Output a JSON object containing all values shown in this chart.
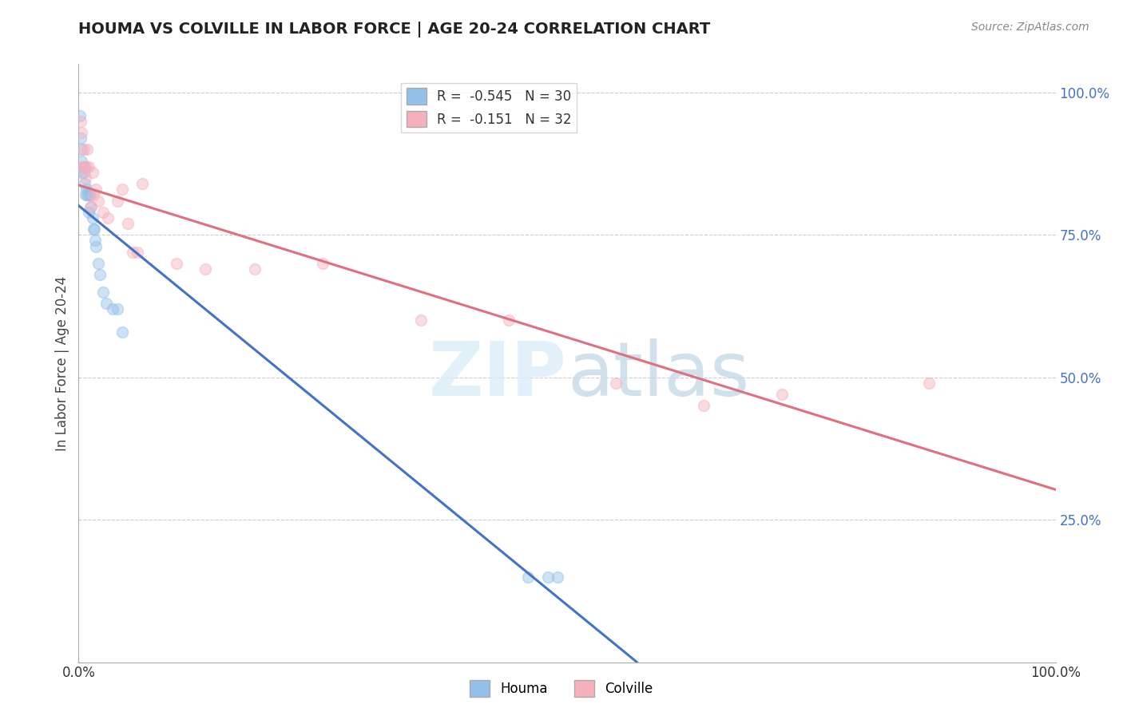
{
  "title": "HOUMA VS COLVILLE IN LABOR FORCE | AGE 20-24 CORRELATION CHART",
  "source_text": "Source: ZipAtlas.com",
  "ylabel": "In Labor Force | Age 20-24",
  "houma_R": -0.545,
  "houma_N": 30,
  "colville_R": -0.151,
  "colville_N": 32,
  "houma_color": "#92c0e8",
  "colville_color": "#f5b0bc",
  "houma_line_color": "#4472c4",
  "colville_line_color": "#e07080",
  "bg_color": "#ffffff",
  "grid_color": "#cccccc",
  "houma_x": [
    0.001,
    0.002,
    0.003,
    0.003,
    0.004,
    0.005,
    0.005,
    0.006,
    0.007,
    0.008,
    0.009,
    0.01,
    0.01,
    0.012,
    0.013,
    0.014,
    0.015,
    0.016,
    0.017,
    0.018,
    0.02,
    0.022,
    0.025,
    0.028,
    0.035,
    0.04,
    0.045,
    0.46,
    0.48,
    0.49
  ],
  "houma_y": [
    0.96,
    0.92,
    0.88,
    0.9,
    0.86,
    0.87,
    0.86,
    0.84,
    0.82,
    0.83,
    0.82,
    0.82,
    0.79,
    0.82,
    0.8,
    0.78,
    0.76,
    0.76,
    0.74,
    0.73,
    0.7,
    0.68,
    0.65,
    0.63,
    0.62,
    0.62,
    0.58,
    0.15,
    0.15,
    0.15
  ],
  "colville_x": [
    0.002,
    0.003,
    0.004,
    0.005,
    0.006,
    0.007,
    0.008,
    0.009,
    0.01,
    0.012,
    0.014,
    0.015,
    0.018,
    0.02,
    0.025,
    0.03,
    0.04,
    0.045,
    0.05,
    0.055,
    0.06,
    0.065,
    0.1,
    0.13,
    0.18,
    0.25,
    0.35,
    0.44,
    0.55,
    0.64,
    0.72,
    0.87
  ],
  "colville_y": [
    0.95,
    0.93,
    0.87,
    0.9,
    0.87,
    0.85,
    0.87,
    0.9,
    0.87,
    0.8,
    0.86,
    0.82,
    0.83,
    0.81,
    0.79,
    0.78,
    0.81,
    0.83,
    0.77,
    0.72,
    0.72,
    0.84,
    0.7,
    0.69,
    0.69,
    0.7,
    0.6,
    0.6,
    0.49,
    0.45,
    0.47,
    0.49
  ],
  "xlim": [
    0.0,
    1.0
  ],
  "ylim": [
    0.0,
    1.05
  ],
  "ytick_vals_right": [
    0.25,
    0.5,
    0.75,
    1.0
  ],
  "ytick_labels_right": [
    "25.0%",
    "50.0%",
    "75.0%",
    "100.0%"
  ],
  "xtick_vals": [
    0.0,
    1.0
  ],
  "xtick_labels": [
    "0.0%",
    "100.0%"
  ],
  "marker_size": 100,
  "marker_alpha": 0.45
}
